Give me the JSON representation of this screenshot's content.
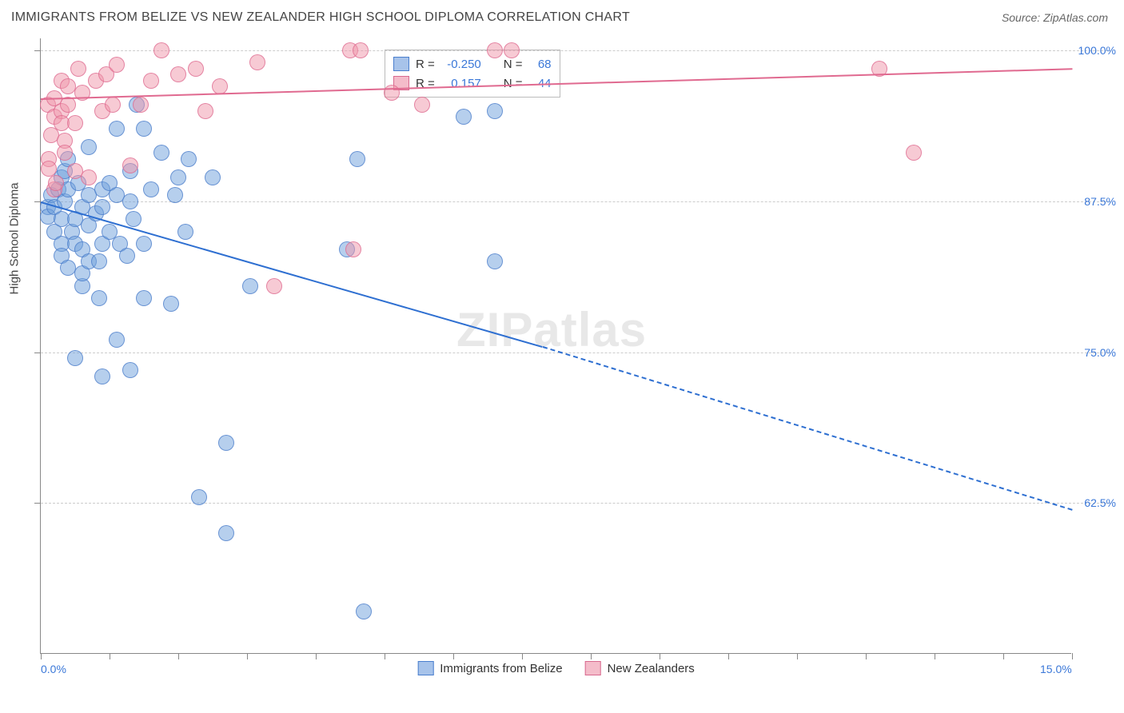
{
  "title": "IMMIGRANTS FROM BELIZE VS NEW ZEALANDER HIGH SCHOOL DIPLOMA CORRELATION CHART",
  "source": "Source: ZipAtlas.com",
  "y_axis_label": "High School Diploma",
  "watermark": "ZIPatlas",
  "chart": {
    "type": "scatter",
    "background_color": "#ffffff",
    "grid_color": "#cccccc",
    "axis_color": "#888888",
    "xlim": [
      0.0,
      15.0
    ],
    "ylim": [
      50.0,
      101.0
    ],
    "x_ticks": [
      0.0,
      15.0
    ],
    "x_tick_labels": [
      "0.0%",
      "15.0%"
    ],
    "y_ticks": [
      62.5,
      75.0,
      87.5,
      100.0
    ],
    "y_tick_labels": [
      "62.5%",
      "75.0%",
      "87.5%",
      "100.0%"
    ],
    "marker_radius": 10,
    "series": [
      {
        "name": "Immigrants from Belize",
        "color_fill": "rgba(110,160,220,0.5)",
        "color_stroke": "rgba(70,120,200,0.7)",
        "trend_color": "#2e6fd1",
        "R": "-0.250",
        "N": "68",
        "trend": {
          "x1": 0.0,
          "y1": 87.5,
          "x2": 7.3,
          "y2": 75.5,
          "x2_dash": 15.0,
          "y2_dash": 62.0
        },
        "points": [
          [
            0.1,
            87.0
          ],
          [
            0.1,
            86.2
          ],
          [
            0.15,
            88.0
          ],
          [
            0.2,
            87.0
          ],
          [
            0.2,
            85.0
          ],
          [
            0.25,
            88.5
          ],
          [
            0.3,
            89.5
          ],
          [
            0.3,
            86.0
          ],
          [
            0.3,
            84.0
          ],
          [
            0.3,
            83.0
          ],
          [
            0.35,
            87.5
          ],
          [
            0.35,
            90.0
          ],
          [
            0.4,
            91.0
          ],
          [
            0.4,
            88.5
          ],
          [
            0.4,
            82.0
          ],
          [
            0.45,
            85.0
          ],
          [
            0.5,
            86.0
          ],
          [
            0.5,
            84.0
          ],
          [
            0.5,
            74.5
          ],
          [
            0.55,
            89.0
          ],
          [
            0.6,
            87.0
          ],
          [
            0.6,
            83.5
          ],
          [
            0.6,
            80.5
          ],
          [
            0.6,
            81.5
          ],
          [
            0.7,
            92.0
          ],
          [
            0.7,
            88.0
          ],
          [
            0.7,
            85.5
          ],
          [
            0.7,
            82.5
          ],
          [
            0.8,
            86.5
          ],
          [
            0.85,
            82.5
          ],
          [
            0.85,
            79.5
          ],
          [
            0.9,
            88.5
          ],
          [
            0.9,
            87.0
          ],
          [
            0.9,
            84.0
          ],
          [
            0.9,
            73.0
          ],
          [
            1.0,
            89.0
          ],
          [
            1.0,
            85.0
          ],
          [
            1.1,
            93.5
          ],
          [
            1.1,
            88.0
          ],
          [
            1.1,
            76.0
          ],
          [
            1.15,
            84.0
          ],
          [
            1.25,
            83.0
          ],
          [
            1.3,
            90.0
          ],
          [
            1.3,
            87.5
          ],
          [
            1.3,
            73.5
          ],
          [
            1.35,
            86.0
          ],
          [
            1.4,
            95.5
          ],
          [
            1.5,
            84.0
          ],
          [
            1.5,
            79.5
          ],
          [
            1.5,
            93.5
          ],
          [
            1.6,
            88.5
          ],
          [
            1.75,
            91.5
          ],
          [
            1.9,
            79.0
          ],
          [
            1.95,
            88.0
          ],
          [
            2.0,
            89.5
          ],
          [
            2.1,
            85.0
          ],
          [
            2.15,
            91.0
          ],
          [
            2.3,
            63.0
          ],
          [
            2.5,
            89.5
          ],
          [
            2.7,
            67.5
          ],
          [
            2.7,
            60.0
          ],
          [
            3.05,
            80.5
          ],
          [
            4.45,
            83.5
          ],
          [
            4.6,
            91.0
          ],
          [
            4.7,
            53.5
          ],
          [
            6.15,
            94.5
          ],
          [
            6.6,
            95.0
          ],
          [
            6.6,
            82.5
          ]
        ]
      },
      {
        "name": "New Zealanders",
        "color_fill": "rgba(240,150,170,0.5)",
        "color_stroke": "rgba(220,100,140,0.7)",
        "trend_color": "#e06a90",
        "R": "0.157",
        "N": "44",
        "trend": {
          "x1": 0.0,
          "y1": 96.0,
          "x2": 15.0,
          "y2": 98.5
        },
        "points": [
          [
            0.1,
            95.5
          ],
          [
            0.12,
            91.0
          ],
          [
            0.12,
            90.2
          ],
          [
            0.15,
            93.0
          ],
          [
            0.2,
            96.0
          ],
          [
            0.2,
            94.5
          ],
          [
            0.2,
            88.5
          ],
          [
            0.22,
            89.0
          ],
          [
            0.3,
            97.5
          ],
          [
            0.3,
            95.0
          ],
          [
            0.3,
            94.0
          ],
          [
            0.35,
            92.5
          ],
          [
            0.35,
            91.5
          ],
          [
            0.4,
            97.0
          ],
          [
            0.4,
            95.5
          ],
          [
            0.5,
            94.0
          ],
          [
            0.5,
            90.0
          ],
          [
            0.55,
            98.5
          ],
          [
            0.6,
            96.5
          ],
          [
            0.7,
            89.5
          ],
          [
            0.8,
            97.5
          ],
          [
            0.9,
            95.0
          ],
          [
            0.95,
            98.0
          ],
          [
            1.05,
            95.5
          ],
          [
            1.1,
            98.8
          ],
          [
            1.3,
            90.5
          ],
          [
            1.45,
            95.5
          ],
          [
            1.6,
            97.5
          ],
          [
            1.75,
            100.0
          ],
          [
            2.0,
            98.0
          ],
          [
            2.25,
            98.5
          ],
          [
            2.4,
            95.0
          ],
          [
            2.6,
            97.0
          ],
          [
            3.15,
            99.0
          ],
          [
            3.4,
            80.5
          ],
          [
            4.5,
            100.0
          ],
          [
            4.55,
            83.5
          ],
          [
            4.65,
            100.0
          ],
          [
            5.1,
            96.5
          ],
          [
            5.55,
            95.5
          ],
          [
            6.6,
            100.0
          ],
          [
            6.85,
            100.0
          ],
          [
            12.2,
            98.5
          ],
          [
            12.7,
            91.5
          ]
        ]
      }
    ]
  },
  "top_legend": {
    "rows": [
      {
        "swatch": "blue",
        "R_label": "R =",
        "R_val": "-0.250",
        "N_label": "N =",
        "N_val": "68"
      },
      {
        "swatch": "pink",
        "R_label": "R =",
        "R_val": "0.157",
        "N_label": "N =",
        "N_val": "44"
      }
    ]
  },
  "bottom_legend": [
    {
      "swatch": "blue",
      "label": "Immigrants from Belize"
    },
    {
      "swatch": "pink",
      "label": "New Zealanders"
    }
  ]
}
